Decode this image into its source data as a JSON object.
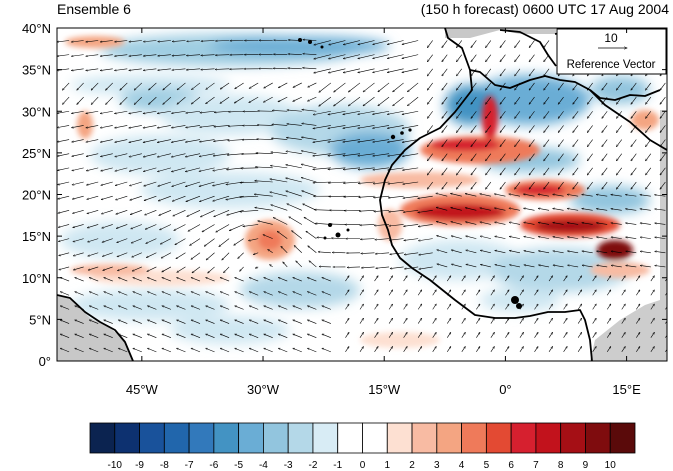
{
  "title_left": "Ensemble 6",
  "title_right": "(150 h forecast) 0600 UTC 17 Aug 2004",
  "reference_vector": {
    "magnitude": "10",
    "label": "Reference Vector"
  },
  "y_axis": {
    "ticks": [
      {
        "value": 40,
        "label": "40°N"
      },
      {
        "value": 35,
        "label": "35°N"
      },
      {
        "value": 30,
        "label": "30°N"
      },
      {
        "value": 25,
        "label": "25°N"
      },
      {
        "value": 20,
        "label": "20°N"
      },
      {
        "value": 15,
        "label": "15°N"
      },
      {
        "value": 10,
        "label": "10°N"
      },
      {
        "value": 5,
        "label": "5°N"
      },
      {
        "value": 0,
        "label": "0°"
      }
    ]
  },
  "x_axis": {
    "ticks": [
      {
        "value": -45,
        "label": "45°W"
      },
      {
        "value": -30,
        "label": "30°W"
      },
      {
        "value": -15,
        "label": "15°W"
      },
      {
        "value": 0,
        "label": "0°"
      },
      {
        "value": 15,
        "label": "15°E"
      }
    ]
  },
  "colorbar": {
    "labels": [
      "-10",
      "-9",
      "-8",
      "-7",
      "-6",
      "-5",
      "-4",
      "-3",
      "-2",
      "-1",
      "0",
      "1",
      "2",
      "3",
      "4",
      "5",
      "6",
      "7",
      "8",
      "9",
      "10"
    ],
    "colors": [
      "#0b2350",
      "#0d3170",
      "#19529b",
      "#2166ac",
      "#3279bb",
      "#4393c3",
      "#6aadd5",
      "#92c5de",
      "#b4d8e8",
      "#d8ecf5",
      "#ffffff",
      "#ffffff",
      "#fde0d2",
      "#f8bba3",
      "#f4a582",
      "#ef7a5a",
      "#e34a33",
      "#d6202f",
      "#c2121c",
      "#a50f15",
      "#7f0c0e",
      "#5a0a0a"
    ]
  }
}
